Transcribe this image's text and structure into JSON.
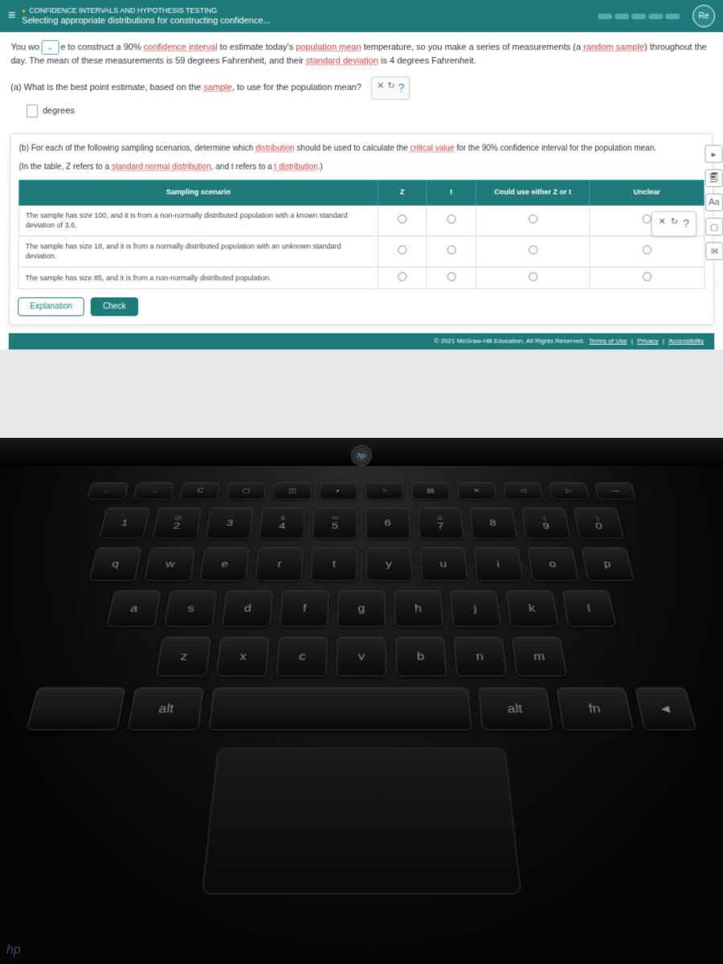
{
  "header": {
    "breadcrumb": "CONFIDENCE INTERVALS AND HYPOTHESIS TESTING",
    "title": "Selecting appropriate distributions for constructing confidence...",
    "right_label": "Re"
  },
  "intro": {
    "pre": "You wo",
    "post1": "e to construct a 90% ",
    "link1": "confidence interval",
    "post2": " to estimate today's ",
    "link2": "population mean",
    "post3": " temperature, so you make a series of measurements (a ",
    "link3": "random sample",
    "post4": ") throughout the day. The mean of these measurements is 59 degrees Fahrenheit, and their ",
    "link4": "standard deviation",
    "post5": " is 4 degrees Fahrenheit."
  },
  "part_a": {
    "text_pre": "(a) What is the best point estimate, based on the ",
    "link": "sample",
    "text_post": ", to use for the population mean?",
    "unit": "degrees"
  },
  "toolbar": {
    "x": "✕",
    "reset": "↻",
    "help": "?"
  },
  "part_b": {
    "text_pre": "(b) For each of the following sampling scenarios, determine which ",
    "link1": "distribution",
    "text_mid": " should be used to calculate the ",
    "link2": "critical value",
    "text_post": " for the 90% confidence interval for the population mean.",
    "note_pre": "(In the table, Z refers to a ",
    "note_link1": "standard normal distribution",
    "note_mid": ", and t refers to a ",
    "note_link2": "t distribution",
    "note_post": ".)"
  },
  "table": {
    "headers": {
      "scenario": "Sampling scenario",
      "z": "Z",
      "t": "t",
      "either": "Could use either Z or t",
      "unclear": "Unclear"
    },
    "rows": [
      "The sample has size 100, and it is from a non-normally distributed population with a known standard deviation of 3.6.",
      "The sample has size 18, and it is from a normally distributed population with an unknown standard deviation.",
      "The sample has size 85, and it is from a non-normally distributed population."
    ]
  },
  "buttons": {
    "explanation": "Explanation",
    "check": "Check"
  },
  "footer": {
    "copyright": "© 2021 McGraw-Hill Education. All Rights Reserved.",
    "terms": "Terms of Use",
    "privacy": "Privacy",
    "accessibility": "Accessibility"
  },
  "keyboard": {
    "fn_row": [
      "←",
      "→",
      "C",
      "▢",
      "◫",
      "◐",
      "○",
      "▤",
      "✕",
      "◁",
      "▷",
      "—"
    ],
    "num_row": [
      {
        "t": "",
        "b": "1"
      },
      {
        "t": "@",
        "b": "2"
      },
      {
        "t": "",
        "b": "3"
      },
      {
        "t": "$",
        "b": "4"
      },
      {
        "t": "%",
        "b": "5"
      },
      {
        "t": "",
        "b": "6"
      },
      {
        "t": "&",
        "b": "7"
      },
      {
        "t": "",
        "b": "8"
      },
      {
        "t": "(",
        "b": "9"
      },
      {
        "t": ")",
        "b": "0"
      }
    ],
    "row_q": [
      "q",
      "w",
      "e",
      "r",
      "t",
      "y",
      "u",
      "i",
      "o",
      "p"
    ],
    "row_a": [
      "a",
      "s",
      "d",
      "f",
      "g",
      "h",
      "j",
      "k",
      "l"
    ],
    "row_z": [
      "z",
      "x",
      "c",
      "v",
      "b",
      "n",
      "m"
    ],
    "alt": "alt",
    "fn": "fn"
  },
  "colors": {
    "teal": "#1f7a7a",
    "link": "#d04040",
    "help": "#1f8fd0"
  }
}
